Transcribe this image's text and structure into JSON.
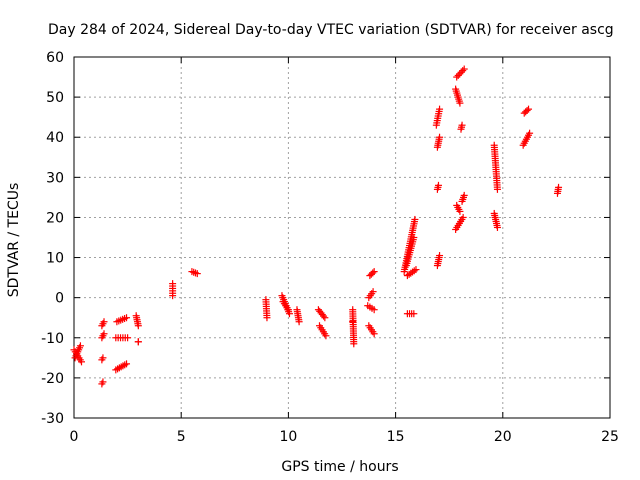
{
  "chart_data": {
    "type": "scatter",
    "title": "Day 284 of 2024, Sidereal Day-to-day VTEC variation (SDTVAR) for receiver ascg",
    "xlabel": "GPS time / hours",
    "ylabel": "SDTVAR / TECUs",
    "xlim": [
      0,
      25
    ],
    "ylim": [
      -30,
      60
    ],
    "xticks": [
      0,
      5,
      10,
      15,
      20,
      25
    ],
    "yticks": [
      -30,
      -20,
      -10,
      0,
      10,
      20,
      30,
      40,
      50,
      60
    ],
    "grid": true,
    "marker": "+",
    "marker_color": "#ff0000",
    "series": [
      {
        "name": "SDTVAR",
        "segments": [
          {
            "x": [
              0.0,
              0.35
            ],
            "y": [
              -13,
              -16
            ]
          },
          {
            "x": [
              0.05,
              0.3
            ],
            "y": [
              -15,
              -12
            ]
          },
          {
            "x": [
              1.3,
              1.4
            ],
            "y": [
              -7,
              -6
            ]
          },
          {
            "x": [
              1.3,
              1.4
            ],
            "y": [
              -10,
              -9
            ]
          },
          {
            "x": [
              1.3,
              1.35
            ],
            "y": [
              -15.5,
              -15
            ]
          },
          {
            "x": [
              1.3,
              1.35
            ],
            "y": [
              -21.5,
              -21
            ]
          },
          {
            "x": [
              1.95,
              2.5
            ],
            "y": [
              -10,
              -10
            ]
          },
          {
            "x": [
              2.0,
              2.45
            ],
            "y": [
              -6,
              -5
            ]
          },
          {
            "x": [
              1.95,
              2.45
            ],
            "y": [
              -18,
              -16.5
            ]
          },
          {
            "x": [
              2.9,
              3.0
            ],
            "y": [
              -4.5,
              -7
            ]
          },
          {
            "x": [
              3.0,
              3.0
            ],
            "y": [
              -11,
              -11
            ]
          },
          {
            "x": [
              4.6,
              4.6
            ],
            "y": [
              0.5,
              3.5
            ]
          },
          {
            "x": [
              5.5,
              5.75
            ],
            "y": [
              6.5,
              6
            ]
          },
          {
            "x": [
              8.95,
              9.0
            ],
            "y": [
              -0.5,
              -5
            ]
          },
          {
            "x": [
              9.7,
              10.05
            ],
            "y": [
              0.5,
              -4
            ]
          },
          {
            "x": [
              9.75,
              10.0
            ],
            "y": [
              -1,
              -3
            ]
          },
          {
            "x": [
              10.4,
              10.5
            ],
            "y": [
              -3,
              -6
            ]
          },
          {
            "x": [
              11.4,
              11.7
            ],
            "y": [
              -3,
              -5
            ]
          },
          {
            "x": [
              11.45,
              11.75
            ],
            "y": [
              -7,
              -9.5
            ]
          },
          {
            "x": [
              13.0,
              13.05
            ],
            "y": [
              -3,
              -11.5
            ]
          },
          {
            "x": [
              13.0,
              13.0
            ],
            "y": [
              -6,
              -6
            ]
          },
          {
            "x": [
              13.75,
              13.95
            ],
            "y": [
              0,
              1.5
            ]
          },
          {
            "x": [
              13.8,
              14.0
            ],
            "y": [
              5.5,
              6.5
            ]
          },
          {
            "x": [
              13.7,
              14.0
            ],
            "y": [
              -2,
              -3
            ]
          },
          {
            "x": [
              13.75,
              14.0
            ],
            "y": [
              -7,
              -9
            ]
          },
          {
            "x": [
              15.4,
              15.9
            ],
            "y": [
              6.5,
              19.5
            ]
          },
          {
            "x": [
              15.5,
              15.85
            ],
            "y": [
              8,
              15
            ]
          },
          {
            "x": [
              15.55,
              15.95
            ],
            "y": [
              5.5,
              7
            ]
          },
          {
            "x": [
              15.55,
              15.85
            ],
            "y": [
              -4,
              -4
            ]
          },
          {
            "x": [
              16.9,
              17.05
            ],
            "y": [
              43,
              47
            ]
          },
          {
            "x": [
              16.95,
              17.05
            ],
            "y": [
              37.5,
              40
            ]
          },
          {
            "x": [
              16.95,
              17.0
            ],
            "y": [
              27,
              28
            ]
          },
          {
            "x": [
              16.95,
              17.05
            ],
            "y": [
              8,
              10.5
            ]
          },
          {
            "x": [
              17.85,
              18.2
            ],
            "y": [
              55,
              57
            ]
          },
          {
            "x": [
              17.8,
              18.0
            ],
            "y": [
              52,
              48.5
            ]
          },
          {
            "x": [
              18.05,
              18.1
            ],
            "y": [
              42,
              43
            ]
          },
          {
            "x": [
              17.8,
              18.15
            ],
            "y": [
              17,
              20
            ]
          },
          {
            "x": [
              17.85,
              18.0
            ],
            "y": [
              23,
              21.5
            ]
          },
          {
            "x": [
              18.1,
              18.2
            ],
            "y": [
              24,
              25.5
            ]
          },
          {
            "x": [
              19.6,
              19.75
            ],
            "y": [
              38,
              27
            ]
          },
          {
            "x": [
              19.6,
              19.75
            ],
            "y": [
              21,
              17.5
            ]
          },
          {
            "x": [
              21.0,
              21.2
            ],
            "y": [
              46,
              47
            ]
          },
          {
            "x": [
              20.95,
              21.25
            ],
            "y": [
              38,
              41
            ]
          },
          {
            "x": [
              22.55,
              22.6
            ],
            "y": [
              26,
              27.5
            ]
          }
        ]
      }
    ]
  }
}
